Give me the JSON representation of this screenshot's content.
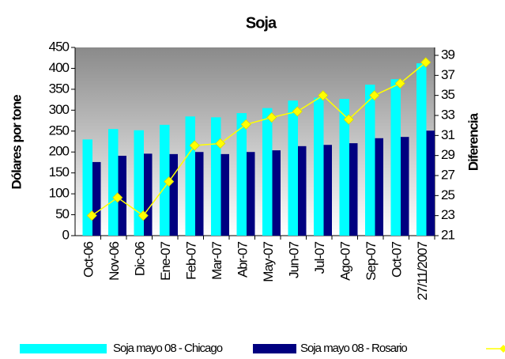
{
  "chart_data": {
    "type": "bar-line",
    "title": "Soja",
    "ylabel": "Dólares por tone",
    "y2label": "Diferencia",
    "categories": [
      "Oct-06",
      "Nov-06",
      "Dic-06",
      "Ene-07",
      "Feb-07",
      "Mar-07",
      "Abr-07",
      "May-07",
      "Jun-07",
      "Jul-07",
      "Ago-07",
      "Sep-07",
      "Oct-07",
      "27/11/2007"
    ],
    "series": [
      {
        "name": "Soja mayo 08 - Chicago",
        "color": "#00ffff",
        "type": "bar",
        "values": [
          230,
          255,
          252,
          265,
          285,
          283,
          293,
          305,
          323,
          330,
          327,
          361,
          374,
          412
        ]
      },
      {
        "name": "Soja mayo 08 - Rosario",
        "color": "#000080",
        "type": "bar",
        "values": [
          176,
          191,
          196,
          195,
          200,
          195,
          200,
          204,
          214,
          217,
          221,
          233,
          236,
          251
        ]
      },
      {
        "color": "#ffff00",
        "type": "line",
        "axis": "y2",
        "values": [
          23,
          24.8,
          23,
          26.4,
          30.0,
          30.2,
          32.1,
          32.8,
          33.4,
          35.0,
          32.6,
          35.0,
          36.2,
          38.3
        ]
      }
    ],
    "ylim": [
      0,
      450
    ],
    "yticks": [
      0,
      50,
      100,
      150,
      200,
      250,
      300,
      350,
      400,
      450
    ],
    "y2lim": [
      21,
      39
    ],
    "y2ticks": [
      21,
      23,
      25,
      27,
      29,
      31,
      33,
      35,
      37,
      39
    ],
    "grid": false,
    "legend": "bottom"
  }
}
